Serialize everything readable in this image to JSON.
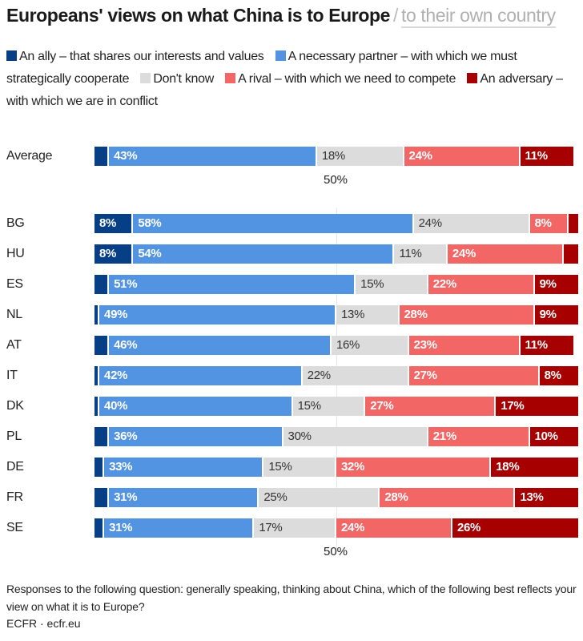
{
  "header": {
    "title": "Europeans' views on what China is to Europe",
    "separator": "/",
    "alt_view_link": "to their own country"
  },
  "legend": [
    {
      "label": "An ally – that shares our interests and values",
      "color": "#073f87"
    },
    {
      "label": "A necessary partner – with which we must strategically cooperate",
      "color": "#5294e2"
    },
    {
      "label": "Don't know",
      "color": "#dcdcdc"
    },
    {
      "label": "A rival – with which we need to compete",
      "color": "#f26666"
    },
    {
      "label": "An adversary – with which we are in conflict",
      "color": "#a60000"
    }
  ],
  "footer": {
    "note": "Responses to the following question: generally speaking, thinking about China, which of the following best reflects your view on what it is to Europe?",
    "source": "ECFR · ecfr.eu"
  },
  "chart_data": {
    "type": "bar",
    "orientation": "horizontal",
    "stacked": true,
    "title": "Europeans' views on what China is to Europe",
    "xlabel": "",
    "ylabel": "",
    "xlim": [
      0,
      100
    ],
    "reference_line": {
      "value": 50,
      "label": "50%"
    },
    "series_names": [
      "An ally – that shares our interests and values",
      "A necessary partner – with which we must strategically cooperate",
      "Don't know",
      "A rival – with which we need to compete",
      "An adversary – with which we are in conflict"
    ],
    "series_colors": [
      "#073f87",
      "#5294e2",
      "#dcdcdc",
      "#f26666",
      "#a60000"
    ],
    "label_styles": [
      "light",
      "light",
      "dark",
      "light",
      "light"
    ],
    "average": {
      "category": "Average",
      "values": [
        3,
        43,
        18,
        24,
        11
      ],
      "labels": [
        "",
        "43%",
        "18%",
        "24%",
        "11%"
      ]
    },
    "categories": [
      "BG",
      "HU",
      "ES",
      "NL",
      "AT",
      "IT",
      "DK",
      "PL",
      "DE",
      "FR",
      "SE"
    ],
    "rows": [
      {
        "values": [
          8,
          58,
          24,
          8,
          2
        ],
        "labels": [
          "8%",
          "58%",
          "24%",
          "8%",
          ""
        ]
      },
      {
        "values": [
          8,
          54,
          11,
          24,
          3
        ],
        "labels": [
          "8%",
          "54%",
          "11%",
          "24%",
          ""
        ]
      },
      {
        "values": [
          3,
          51,
          15,
          22,
          9
        ],
        "labels": [
          "",
          "51%",
          "15%",
          "22%",
          "9%"
        ]
      },
      {
        "values": [
          1,
          49,
          13,
          28,
          9
        ],
        "labels": [
          "",
          "49%",
          "13%",
          "28%",
          "9%"
        ]
      },
      {
        "values": [
          3,
          46,
          16,
          23,
          11
        ],
        "labels": [
          "",
          "46%",
          "16%",
          "23%",
          "11%"
        ]
      },
      {
        "values": [
          1,
          42,
          22,
          27,
          8
        ],
        "labels": [
          "",
          "42%",
          "22%",
          "27%",
          "8%"
        ]
      },
      {
        "values": [
          1,
          40,
          15,
          27,
          17
        ],
        "labels": [
          "",
          "40%",
          "15%",
          "27%",
          "17%"
        ]
      },
      {
        "values": [
          3,
          36,
          30,
          21,
          10
        ],
        "labels": [
          "",
          "36%",
          "30%",
          "21%",
          "10%"
        ]
      },
      {
        "values": [
          2,
          33,
          15,
          32,
          18
        ],
        "labels": [
          "",
          "33%",
          "15%",
          "32%",
          "18%"
        ]
      },
      {
        "values": [
          3,
          31,
          25,
          28,
          13
        ],
        "labels": [
          "",
          "31%",
          "25%",
          "28%",
          "13%"
        ]
      },
      {
        "values": [
          2,
          31,
          17,
          24,
          26
        ],
        "labels": [
          "",
          "31%",
          "17%",
          "24%",
          "26%"
        ]
      }
    ]
  }
}
